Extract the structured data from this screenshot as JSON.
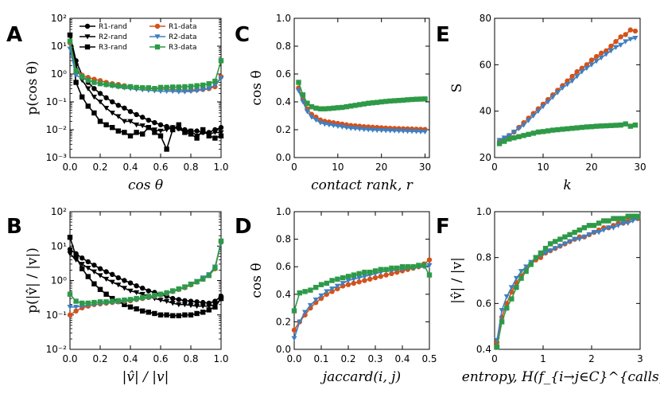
{
  "colors": {
    "R1-rand": "#000000",
    "R2-rand": "#000000",
    "R3-rand": "#000000",
    "R1-data": "#d4521a",
    "R2-data": "#3e7fc1",
    "R3-data": "#2e9a48"
  },
  "legend": [
    "R1-rand",
    "R1-data",
    "R2-rand",
    "R2-data",
    "R3-rand",
    "R3-data"
  ],
  "chart_data": [
    {
      "panel": "A",
      "type": "line",
      "xlabel": "cos θ",
      "ylabel": "p(cos θ)",
      "yscale": "log",
      "xlim": [
        0,
        1
      ],
      "ylim": [
        0.001,
        100
      ],
      "xticks": [
        "0.0",
        "0.2",
        "0.4",
        "0.6",
        "0.8",
        "1.0"
      ],
      "yticks": [
        "10⁻³",
        "10⁻²",
        "10⁻¹",
        "10⁰",
        "10¹",
        "10²"
      ],
      "x": [
        0.0,
        0.04,
        0.08,
        0.12,
        0.16,
        0.2,
        0.24,
        0.28,
        0.32,
        0.36,
        0.4,
        0.44,
        0.48,
        0.52,
        0.56,
        0.6,
        0.64,
        0.68,
        0.72,
        0.76,
        0.8,
        0.84,
        0.88,
        0.92,
        0.96,
        1.0
      ],
      "series": [
        {
          "name": "R1-rand",
          "marker": "circle",
          "values": [
            25,
            3.0,
            0.9,
            0.5,
            0.3,
            0.2,
            0.14,
            0.1,
            0.075,
            0.06,
            0.045,
            0.035,
            0.028,
            0.022,
            0.018,
            0.015,
            0.013,
            0.012,
            0.011,
            0.01,
            0.009,
            0.009,
            0.008,
            0.008,
            0.01,
            0.012
          ]
        },
        {
          "name": "R2-rand",
          "marker": "triangle",
          "values": [
            25,
            2.0,
            0.6,
            0.3,
            0.15,
            0.1,
            0.06,
            0.04,
            0.03,
            0.02,
            0.02,
            0.015,
            0.014,
            0.012,
            0.01,
            0.009,
            0.01,
            0.012,
            0.011,
            0.008,
            0.009,
            0.006,
            0.008,
            0.007,
            0.008,
            0.008
          ]
        },
        {
          "name": "R3-rand",
          "marker": "square",
          "values": [
            25,
            0.5,
            0.15,
            0.07,
            0.04,
            0.02,
            0.015,
            0.012,
            0.009,
            0.008,
            0.006,
            0.008,
            0.007,
            0.012,
            0.008,
            0.006,
            0.002,
            0.01,
            0.015,
            0.008,
            0.007,
            0.005,
            0.01,
            0.006,
            0.005,
            0.006
          ]
        },
        {
          "name": "R1-data",
          "marker": "circle",
          "values": [
            13,
            1.2,
            0.9,
            0.75,
            0.65,
            0.58,
            0.5,
            0.45,
            0.42,
            0.38,
            0.35,
            0.33,
            0.32,
            0.3,
            0.3,
            0.29,
            0.28,
            0.27,
            0.27,
            0.26,
            0.26,
            0.27,
            0.28,
            0.3,
            0.35,
            0.8
          ]
        },
        {
          "name": "R2-data",
          "marker": "triangle",
          "values": [
            8,
            0.9,
            0.7,
            0.6,
            0.5,
            0.45,
            0.4,
            0.37,
            0.34,
            0.32,
            0.3,
            0.28,
            0.27,
            0.26,
            0.25,
            0.24,
            0.24,
            0.24,
            0.23,
            0.23,
            0.24,
            0.25,
            0.27,
            0.3,
            0.4,
            0.7
          ]
        },
        {
          "name": "R3-data",
          "marker": "square",
          "values": [
            15,
            1.3,
            0.8,
            0.6,
            0.5,
            0.45,
            0.42,
            0.4,
            0.37,
            0.35,
            0.35,
            0.33,
            0.32,
            0.32,
            0.3,
            0.33,
            0.33,
            0.34,
            0.34,
            0.35,
            0.36,
            0.38,
            0.4,
            0.45,
            0.55,
            3.0
          ]
        }
      ]
    },
    {
      "panel": "B",
      "type": "line",
      "xlabel": "|v̂| / |v|",
      "ylabel": "p(|v̂| / |v|)",
      "yscale": "log",
      "xlim": [
        0,
        1
      ],
      "ylim": [
        0.01,
        100
      ],
      "xticks": [
        "0.0",
        "0.2",
        "0.4",
        "0.6",
        "0.8",
        "1.0"
      ],
      "yticks": [
        "10⁻²",
        "10⁻¹",
        "10⁰",
        "10¹",
        "10²"
      ],
      "x": [
        0.0,
        0.04,
        0.08,
        0.12,
        0.16,
        0.2,
        0.24,
        0.28,
        0.32,
        0.36,
        0.4,
        0.44,
        0.48,
        0.52,
        0.56,
        0.6,
        0.64,
        0.68,
        0.72,
        0.76,
        0.8,
        0.84,
        0.88,
        0.92,
        0.96,
        1.0
      ],
      "series": [
        {
          "name": "R1-rand",
          "marker": "circle",
          "values": [
            8,
            6,
            4.5,
            3.5,
            2.8,
            2.2,
            1.8,
            1.5,
            1.2,
            1.0,
            0.85,
            0.7,
            0.6,
            0.5,
            0.45,
            0.4,
            0.35,
            0.3,
            0.28,
            0.26,
            0.25,
            0.24,
            0.23,
            0.22,
            0.25,
            0.35
          ]
        },
        {
          "name": "R2-rand",
          "marker": "triangle",
          "values": [
            6,
            4,
            3,
            2.3,
            1.8,
            1.4,
            1.1,
            0.9,
            0.75,
            0.6,
            0.5,
            0.45,
            0.4,
            0.35,
            0.3,
            0.27,
            0.25,
            0.22,
            0.2,
            0.2,
            0.19,
            0.18,
            0.18,
            0.18,
            0.2,
            0.28
          ]
        },
        {
          "name": "R3-rand",
          "marker": "square",
          "values": [
            18,
            5,
            2.2,
            1.3,
            0.8,
            0.55,
            0.4,
            0.3,
            0.25,
            0.2,
            0.17,
            0.15,
            0.13,
            0.12,
            0.11,
            0.1,
            0.1,
            0.095,
            0.095,
            0.1,
            0.1,
            0.11,
            0.12,
            0.14,
            0.17,
            0.3
          ]
        },
        {
          "name": "R1-data",
          "marker": "circle",
          "values": [
            0.1,
            0.13,
            0.16,
            0.18,
            0.2,
            0.21,
            0.22,
            0.23,
            0.24,
            0.25,
            0.26,
            0.28,
            0.3,
            0.32,
            0.35,
            0.38,
            0.42,
            0.48,
            0.55,
            0.62,
            0.75,
            0.9,
            1.1,
            1.4,
            2.2,
            13
          ]
        },
        {
          "name": "R2-data",
          "marker": "triangle",
          "values": [
            0.17,
            0.17,
            0.18,
            0.19,
            0.2,
            0.21,
            0.22,
            0.23,
            0.24,
            0.25,
            0.27,
            0.28,
            0.3,
            0.32,
            0.35,
            0.38,
            0.42,
            0.48,
            0.55,
            0.65,
            0.8,
            0.95,
            1.2,
            1.5,
            2.5,
            12
          ]
        },
        {
          "name": "R3-data",
          "marker": "square",
          "values": [
            0.4,
            0.25,
            0.22,
            0.22,
            0.23,
            0.24,
            0.24,
            0.25,
            0.26,
            0.27,
            0.28,
            0.3,
            0.32,
            0.34,
            0.37,
            0.4,
            0.44,
            0.5,
            0.57,
            0.65,
            0.78,
            0.92,
            1.1,
            1.4,
            2.3,
            14
          ]
        }
      ]
    },
    {
      "panel": "C",
      "type": "line",
      "xlabel": "contact rank, r",
      "ylabel": "cos θ",
      "yscale": "linear",
      "xlim": [
        0,
        31
      ],
      "ylim": [
        0,
        1
      ],
      "xticks": [
        "0",
        "10",
        "20",
        "30"
      ],
      "yticks": [
        "0.0",
        "0.2",
        "0.4",
        "0.6",
        "0.8",
        "1.0"
      ],
      "x": [
        1,
        2,
        3,
        4,
        5,
        6,
        7,
        8,
        9,
        10,
        11,
        12,
        13,
        14,
        15,
        16,
        17,
        18,
        19,
        20,
        21,
        22,
        23,
        24,
        25,
        26,
        27,
        28,
        29,
        30
      ],
      "series": [
        {
          "name": "R1-data",
          "marker": "circle",
          "values": [
            0.5,
            0.42,
            0.35,
            0.31,
            0.29,
            0.27,
            0.26,
            0.255,
            0.25,
            0.245,
            0.24,
            0.235,
            0.23,
            0.228,
            0.225,
            0.222,
            0.22,
            0.218,
            0.216,
            0.214,
            0.212,
            0.21,
            0.209,
            0.208,
            0.207,
            0.206,
            0.205,
            0.204,
            0.203,
            0.202
          ]
        },
        {
          "name": "R2-data",
          "marker": "triangle",
          "values": [
            0.48,
            0.4,
            0.33,
            0.29,
            0.27,
            0.25,
            0.24,
            0.235,
            0.23,
            0.225,
            0.22,
            0.215,
            0.21,
            0.208,
            0.205,
            0.202,
            0.2,
            0.198,
            0.196,
            0.195,
            0.194,
            0.193,
            0.192,
            0.191,
            0.19,
            0.189,
            0.188,
            0.187,
            0.186,
            0.185
          ]
        },
        {
          "name": "R3-data",
          "marker": "square",
          "values": [
            0.54,
            0.45,
            0.39,
            0.365,
            0.355,
            0.35,
            0.35,
            0.352,
            0.355,
            0.358,
            0.36,
            0.365,
            0.37,
            0.375,
            0.38,
            0.385,
            0.39,
            0.393,
            0.396,
            0.4,
            0.403,
            0.406,
            0.408,
            0.41,
            0.412,
            0.415,
            0.417,
            0.419,
            0.42,
            0.421
          ]
        }
      ]
    },
    {
      "panel": "D",
      "type": "line",
      "xlabel": "jaccard(i, j)",
      "ylabel": "cos θ",
      "yscale": "linear",
      "xlim": [
        0,
        0.5
      ],
      "ylim": [
        0,
        1
      ],
      "xticks": [
        "0.0",
        "0.1",
        "0.2",
        "0.3",
        "0.4",
        "0.5"
      ],
      "yticks": [
        "0.0",
        "0.2",
        "0.4",
        "0.6",
        "0.8",
        "1.0"
      ],
      "x": [
        0.0,
        0.02,
        0.04,
        0.06,
        0.08,
        0.1,
        0.12,
        0.14,
        0.16,
        0.18,
        0.2,
        0.22,
        0.24,
        0.26,
        0.28,
        0.3,
        0.32,
        0.34,
        0.36,
        0.38,
        0.4,
        0.42,
        0.44,
        0.46,
        0.48,
        0.5
      ],
      "series": [
        {
          "name": "R1-data",
          "marker": "circle",
          "values": [
            0.14,
            0.2,
            0.25,
            0.3,
            0.34,
            0.37,
            0.4,
            0.42,
            0.44,
            0.46,
            0.47,
            0.48,
            0.49,
            0.5,
            0.51,
            0.52,
            0.53,
            0.54,
            0.55,
            0.56,
            0.57,
            0.58,
            0.59,
            0.6,
            0.62,
            0.65
          ]
        },
        {
          "name": "R2-data",
          "marker": "triangle",
          "values": [
            0.08,
            0.2,
            0.27,
            0.32,
            0.36,
            0.39,
            0.42,
            0.44,
            0.46,
            0.48,
            0.5,
            0.51,
            0.52,
            0.53,
            0.54,
            0.55,
            0.56,
            0.57,
            0.57,
            0.58,
            0.58,
            0.59,
            0.59,
            0.6,
            0.6,
            0.61
          ]
        },
        {
          "name": "R3-data",
          "marker": "square",
          "values": [
            0.28,
            0.41,
            0.42,
            0.43,
            0.45,
            0.47,
            0.48,
            0.5,
            0.51,
            0.52,
            0.53,
            0.54,
            0.55,
            0.56,
            0.56,
            0.57,
            0.58,
            0.58,
            0.59,
            0.59,
            0.6,
            0.6,
            0.6,
            0.61,
            0.61,
            0.54
          ]
        }
      ]
    },
    {
      "panel": "E",
      "type": "line",
      "xlabel": "k",
      "ylabel": "S",
      "yscale": "linear",
      "xlim": [
        0,
        30
      ],
      "ylim": [
        20,
        80
      ],
      "xticks": [
        "0",
        "10",
        "20",
        "30"
      ],
      "yticks": [
        "20",
        "40",
        "60",
        "80"
      ],
      "x": [
        1,
        2,
        3,
        4,
        5,
        6,
        7,
        8,
        9,
        10,
        11,
        12,
        13,
        14,
        15,
        16,
        17,
        18,
        19,
        20,
        21,
        22,
        23,
        24,
        25,
        26,
        27,
        28,
        29
      ],
      "series": [
        {
          "name": "R1-data",
          "marker": "circle",
          "values": [
            27,
            28,
            29.5,
            31,
            33,
            35,
            37,
            39,
            41,
            43,
            45,
            47,
            49,
            51,
            53,
            55,
            57,
            58.5,
            60,
            62,
            63.5,
            65,
            66,
            68,
            70,
            72,
            73,
            75,
            74.5
          ]
        },
        {
          "name": "R2-data",
          "marker": "triangle",
          "values": [
            27.5,
            28.5,
            29.5,
            31,
            32.5,
            34,
            36,
            38,
            40,
            42,
            44,
            46,
            48,
            50,
            51.5,
            53,
            55,
            57,
            58.5,
            60,
            61.5,
            63,
            64.5,
            66,
            67.5,
            68.5,
            70,
            71,
            71.5
          ]
        },
        {
          "name": "R3-data",
          "marker": "square",
          "values": [
            26,
            27,
            28,
            28.5,
            29,
            29.5,
            30,
            30.5,
            31,
            31.2,
            31.5,
            31.8,
            32,
            32.2,
            32.4,
            32.6,
            32.8,
            33,
            33.2,
            33.3,
            33.5,
            33.6,
            33.7,
            33.8,
            33.9,
            34,
            34.5,
            33.5,
            34
          ]
        }
      ]
    },
    {
      "panel": "F",
      "type": "line",
      "xlabel": "entropy, H(f_{i→j∈C}^{calls})",
      "ylabel": "|v̂| / |v|",
      "yscale": "linear",
      "xlim": [
        0,
        3
      ],
      "ylim": [
        0.4,
        1.0
      ],
      "xticks": [
        "0",
        "1",
        "2",
        "3"
      ],
      "yticks": [
        "0.4",
        "0.6",
        "0.8",
        "1.0"
      ],
      "x": [
        0.05,
        0.15,
        0.25,
        0.35,
        0.45,
        0.55,
        0.65,
        0.75,
        0.85,
        0.95,
        1.05,
        1.15,
        1.25,
        1.35,
        1.45,
        1.55,
        1.65,
        1.75,
        1.85,
        1.95,
        2.05,
        2.15,
        2.25,
        2.35,
        2.45,
        2.55,
        2.65,
        2.75,
        2.85,
        2.95
      ],
      "series": [
        {
          "name": "R1-data",
          "marker": "circle",
          "values": [
            0.43,
            0.54,
            0.6,
            0.65,
            0.69,
            0.72,
            0.75,
            0.77,
            0.79,
            0.8,
            0.82,
            0.83,
            0.84,
            0.85,
            0.86,
            0.87,
            0.88,
            0.89,
            0.89,
            0.9,
            0.91,
            0.92,
            0.93,
            0.93,
            0.94,
            0.95,
            0.95,
            0.96,
            0.97,
            0.97
          ]
        },
        {
          "name": "R2-data",
          "marker": "triangle",
          "values": [
            0.44,
            0.57,
            0.63,
            0.67,
            0.71,
            0.74,
            0.76,
            0.78,
            0.8,
            0.81,
            0.82,
            0.83,
            0.84,
            0.85,
            0.86,
            0.87,
            0.88,
            0.88,
            0.89,
            0.9,
            0.91,
            0.91,
            0.92,
            0.93,
            0.93,
            0.94,
            0.95,
            0.95,
            0.96,
            0.97
          ]
        },
        {
          "name": "R3-data",
          "marker": "square",
          "values": [
            0.41,
            0.52,
            0.58,
            0.62,
            0.67,
            0.71,
            0.74,
            0.77,
            0.8,
            0.82,
            0.84,
            0.86,
            0.87,
            0.88,
            0.89,
            0.9,
            0.91,
            0.92,
            0.93,
            0.94,
            0.94,
            0.95,
            0.96,
            0.96,
            0.97,
            0.97,
            0.97,
            0.98,
            0.98,
            0.98
          ]
        }
      ]
    }
  ]
}
